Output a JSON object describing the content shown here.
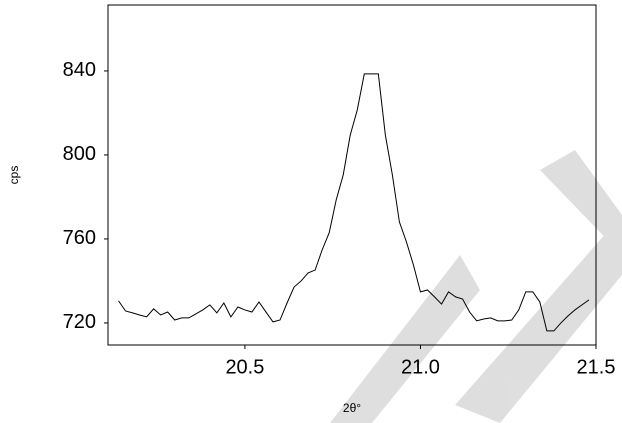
{
  "chart_data": {
    "type": "line",
    "x_label": "2θ°",
    "y_label": "cps",
    "x": [
      20.14,
      20.16,
      20.18,
      20.2,
      20.22,
      20.24,
      20.26,
      20.28,
      20.3,
      20.32,
      20.34,
      20.36,
      20.38,
      20.4,
      20.42,
      20.44,
      20.46,
      20.48,
      20.5,
      20.52,
      20.54,
      20.56,
      20.58,
      20.6,
      20.62,
      20.64,
      20.66,
      20.68,
      20.7,
      20.72,
      20.74,
      20.76,
      20.78,
      20.8,
      20.82,
      20.84,
      20.86,
      20.88,
      20.9,
      20.92,
      20.94,
      20.96,
      20.98,
      21.0,
      21.02,
      21.04,
      21.06,
      21.08,
      21.1,
      21.12,
      21.14,
      21.16,
      21.18,
      21.2,
      21.22,
      21.24,
      21.26,
      21.28,
      21.3,
      21.32,
      21.34,
      21.36,
      21.38,
      21.4,
      21.42,
      21.44,
      21.46,
      21.48
    ],
    "series": [
      {
        "color": "#000000",
        "values": [
          730.5,
          725.7,
          724.8,
          723.8,
          722.9,
          726.7,
          723.8,
          725.2,
          721.4,
          722.4,
          722.4,
          724.3,
          726.2,
          728.6,
          724.8,
          729.5,
          722.9,
          727.6,
          726.2,
          725.2,
          730,
          725.2,
          720.5,
          721.4,
          729.5,
          737.1,
          740,
          743.8,
          745.2,
          754.8,
          762.9,
          778.6,
          790.5,
          809.5,
          821.4,
          838.6,
          838.6,
          838.6,
          809.5,
          790.5,
          768.1,
          758.6,
          747.6,
          734.8,
          735.7,
          732.4,
          729,
          734.8,
          732.4,
          731.4,
          725.2,
          721,
          721.9,
          722.4,
          721,
          721,
          721.4,
          726.2,
          734.8,
          734.8,
          730,
          716.2,
          716.2,
          720,
          723.3,
          726.2,
          728.6,
          731
        ]
      }
    ],
    "xlim": [
      20.11,
      21.5
    ],
    "ylim": [
      709.5,
      871.4
    ],
    "xticks": [
      20.5,
      {
        "value": 21,
        "label": "21.0"
      },
      21.5
    ],
    "yticks": [
      720,
      760,
      800,
      840
    ]
  }
}
